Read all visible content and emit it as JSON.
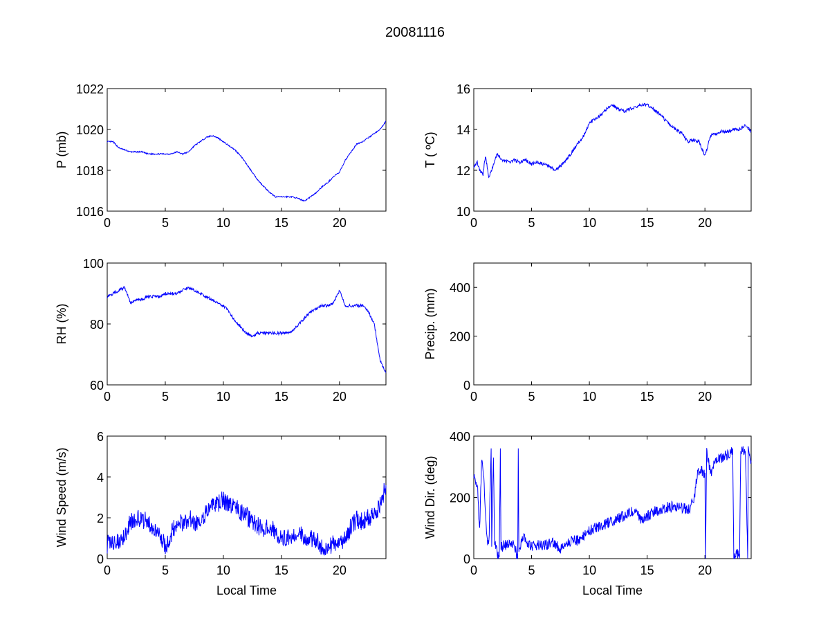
{
  "chart_data": {
    "title": "20081116",
    "line_color": "#0000ff",
    "panels": [
      {
        "type": "line",
        "ylabel": "P (mb)",
        "xlabel": "",
        "xlim": [
          0,
          24
        ],
        "ylim": [
          1016,
          1022
        ],
        "xticks": [
          0,
          5,
          10,
          15,
          20
        ],
        "yticks": [
          1016,
          1018,
          1020,
          1022
        ],
        "points": [
          [
            0,
            1019.4
          ],
          [
            0.5,
            1019.4
          ],
          [
            1,
            1019.1
          ],
          [
            1.5,
            1019.0
          ],
          [
            2,
            1018.9
          ],
          [
            2.5,
            1018.9
          ],
          [
            3,
            1018.9
          ],
          [
            3.5,
            1018.8
          ],
          [
            4,
            1018.8
          ],
          [
            4.5,
            1018.8
          ],
          [
            5,
            1018.8
          ],
          [
            5.5,
            1018.8
          ],
          [
            6,
            1018.9
          ],
          [
            6.5,
            1018.8
          ],
          [
            7,
            1018.9
          ],
          [
            7.5,
            1019.2
          ],
          [
            8,
            1019.4
          ],
          [
            8.5,
            1019.6
          ],
          [
            9,
            1019.7
          ],
          [
            9.5,
            1019.6
          ],
          [
            10,
            1019.4
          ],
          [
            10.5,
            1019.2
          ],
          [
            11,
            1019.0
          ],
          [
            11.5,
            1018.7
          ],
          [
            12,
            1018.3
          ],
          [
            12.5,
            1017.9
          ],
          [
            13,
            1017.5
          ],
          [
            13.5,
            1017.2
          ],
          [
            14,
            1016.9
          ],
          [
            14.5,
            1016.7
          ],
          [
            15,
            1016.7
          ],
          [
            15.5,
            1016.7
          ],
          [
            16,
            1016.7
          ],
          [
            16.5,
            1016.6
          ],
          [
            17,
            1016.5
          ],
          [
            17.5,
            1016.7
          ],
          [
            18,
            1016.9
          ],
          [
            18.5,
            1017.2
          ],
          [
            19,
            1017.4
          ],
          [
            19.5,
            1017.7
          ],
          [
            20,
            1017.9
          ],
          [
            20.5,
            1018.5
          ],
          [
            21,
            1018.9
          ],
          [
            21.5,
            1019.3
          ],
          [
            22,
            1019.4
          ],
          [
            22.5,
            1019.6
          ],
          [
            23,
            1019.8
          ],
          [
            23.5,
            1020.0
          ],
          [
            24,
            1020.4
          ]
        ]
      },
      {
        "type": "line",
        "ylabel": "T ( ºC)",
        "xlabel": "",
        "xlim": [
          0,
          24
        ],
        "ylim": [
          10,
          16
        ],
        "xticks": [
          0,
          5,
          10,
          15,
          20
        ],
        "yticks": [
          10,
          12,
          14,
          16
        ],
        "points": [
          [
            0,
            12.2
          ],
          [
            0.3,
            12.4
          ],
          [
            0.5,
            12.0
          ],
          [
            0.8,
            11.8
          ],
          [
            1,
            12.7
          ],
          [
            1.3,
            11.7
          ],
          [
            1.5,
            11.9
          ],
          [
            1.7,
            12.3
          ],
          [
            2,
            12.8
          ],
          [
            2.5,
            12.5
          ],
          [
            3,
            12.4
          ],
          [
            3.5,
            12.5
          ],
          [
            4,
            12.4
          ],
          [
            4.5,
            12.5
          ],
          [
            5,
            12.3
          ],
          [
            5.5,
            12.4
          ],
          [
            6,
            12.3
          ],
          [
            6.5,
            12.2
          ],
          [
            7,
            12.0
          ],
          [
            7.5,
            12.2
          ],
          [
            8,
            12.5
          ],
          [
            8.5,
            12.9
          ],
          [
            9,
            13.3
          ],
          [
            9.5,
            13.7
          ],
          [
            10,
            14.3
          ],
          [
            10.5,
            14.5
          ],
          [
            11,
            14.7
          ],
          [
            11.5,
            15.0
          ],
          [
            12,
            15.2
          ],
          [
            12.5,
            15.0
          ],
          [
            13,
            14.9
          ],
          [
            13.5,
            15.0
          ],
          [
            14,
            15.1
          ],
          [
            14.5,
            15.2
          ],
          [
            15,
            15.2
          ],
          [
            15.5,
            15.0
          ],
          [
            16,
            14.8
          ],
          [
            16.5,
            14.5
          ],
          [
            17,
            14.2
          ],
          [
            17.5,
            14.0
          ],
          [
            18,
            13.8
          ],
          [
            18.5,
            13.4
          ],
          [
            19,
            13.5
          ],
          [
            19.5,
            13.4
          ],
          [
            20,
            12.7
          ],
          [
            20.5,
            13.7
          ],
          [
            21,
            13.8
          ],
          [
            21.5,
            13.9
          ],
          [
            22,
            13.9
          ],
          [
            22.5,
            14.0
          ],
          [
            23,
            14.0
          ],
          [
            23.5,
            14.2
          ],
          [
            24,
            13.9
          ]
        ]
      },
      {
        "type": "line",
        "ylabel": "RH (%)",
        "xlabel": "",
        "xlim": [
          0,
          24
        ],
        "ylim": [
          60,
          100
        ],
        "xticks": [
          0,
          5,
          10,
          15,
          20
        ],
        "yticks": [
          60,
          80,
          100
        ],
        "points": [
          [
            0,
            89
          ],
          [
            0.5,
            90
          ],
          [
            1,
            91
          ],
          [
            1.5,
            92
          ],
          [
            2,
            87
          ],
          [
            2.5,
            88
          ],
          [
            3,
            88
          ],
          [
            3.5,
            89
          ],
          [
            4,
            89
          ],
          [
            4.5,
            89
          ],
          [
            5,
            90
          ],
          [
            5.5,
            90
          ],
          [
            6,
            90
          ],
          [
            6.5,
            91
          ],
          [
            7,
            92
          ],
          [
            7.5,
            91
          ],
          [
            8,
            90
          ],
          [
            8.5,
            89
          ],
          [
            9,
            88
          ],
          [
            9.5,
            87
          ],
          [
            10,
            86
          ],
          [
            10.5,
            84
          ],
          [
            11,
            81
          ],
          [
            11.5,
            79
          ],
          [
            12,
            77
          ],
          [
            12.5,
            76
          ],
          [
            13,
            77
          ],
          [
            13.5,
            77
          ],
          [
            14,
            77
          ],
          [
            14.5,
            77
          ],
          [
            15,
            77
          ],
          [
            15.5,
            77
          ],
          [
            16,
            78
          ],
          [
            16.5,
            80
          ],
          [
            17,
            82
          ],
          [
            17.5,
            84
          ],
          [
            18,
            85
          ],
          [
            18.5,
            86
          ],
          [
            19,
            86
          ],
          [
            19.5,
            87
          ],
          [
            20,
            91
          ],
          [
            20.5,
            86
          ],
          [
            21,
            86
          ],
          [
            21.5,
            86
          ],
          [
            22,
            86
          ],
          [
            22.5,
            84
          ],
          [
            23,
            80
          ],
          [
            23.5,
            68
          ],
          [
            24,
            64
          ]
        ]
      },
      {
        "type": "line",
        "ylabel": "Precip. (mm)",
        "xlabel": "",
        "xlim": [
          0,
          24
        ],
        "ylim": [
          0,
          500
        ],
        "xticks": [
          0,
          5,
          10,
          15,
          20
        ],
        "yticks": [
          0,
          200,
          400
        ],
        "points": []
      },
      {
        "type": "line",
        "ylabel": "Wind Speed (m/s)",
        "xlabel": "Local Time",
        "xlim": [
          0,
          24
        ],
        "ylim": [
          0,
          6
        ],
        "xticks": [
          0,
          5,
          10,
          15,
          20
        ],
        "yticks": [
          0,
          2,
          4,
          6
        ],
        "points": [
          [
            0,
            0.7
          ],
          [
            0.5,
            0.8
          ],
          [
            1,
            0.9
          ],
          [
            1.5,
            1.2
          ],
          [
            2,
            1.8
          ],
          [
            2.5,
            2.0
          ],
          [
            3,
            1.9
          ],
          [
            3.5,
            1.8
          ],
          [
            4,
            1.5
          ],
          [
            4.5,
            1.3
          ],
          [
            5,
            0.6
          ],
          [
            5.5,
            1.2
          ],
          [
            6,
            1.8
          ],
          [
            6.5,
            1.7
          ],
          [
            7,
            2.0
          ],
          [
            7.5,
            1.8
          ],
          [
            8,
            1.7
          ],
          [
            8.5,
            2.2
          ],
          [
            9,
            2.5
          ],
          [
            9.5,
            2.7
          ],
          [
            10,
            2.9
          ],
          [
            10.5,
            2.6
          ],
          [
            11,
            2.5
          ],
          [
            11.5,
            2.3
          ],
          [
            12,
            2.1
          ],
          [
            12.5,
            1.8
          ],
          [
            13,
            1.6
          ],
          [
            13.5,
            1.5
          ],
          [
            14,
            1.6
          ],
          [
            14.5,
            1.3
          ],
          [
            15,
            1.0
          ],
          [
            15.5,
            1.1
          ],
          [
            16,
            1.1
          ],
          [
            16.5,
            1.2
          ],
          [
            17,
            1.1
          ],
          [
            17.5,
            1.0
          ],
          [
            18,
            0.9
          ],
          [
            18.5,
            0.6
          ],
          [
            19,
            0.5
          ],
          [
            19.5,
            0.8
          ],
          [
            20,
            0.9
          ],
          [
            20.5,
            0.9
          ],
          [
            21,
            1.6
          ],
          [
            21.5,
            1.9
          ],
          [
            22,
            1.8
          ],
          [
            22.5,
            2.0
          ],
          [
            23,
            2.2
          ],
          [
            23.5,
            2.6
          ],
          [
            24,
            3.6
          ]
        ]
      },
      {
        "type": "line",
        "ylabel": "Wind Dir. (deg)",
        "xlabel": "Local Time",
        "xlim": [
          0,
          24
        ],
        "ylim": [
          0,
          400
        ],
        "xticks": [
          0,
          5,
          10,
          15,
          20
        ],
        "yticks": [
          0,
          200,
          400
        ],
        "points": [
          [
            0,
            280
          ],
          [
            0.3,
            240
          ],
          [
            0.5,
            90
          ],
          [
            0.7,
            340
          ],
          [
            0.9,
            240
          ],
          [
            1.1,
            80
          ],
          [
            1.3,
            40
          ],
          [
            1.5,
            360
          ],
          [
            1.55,
            50
          ],
          [
            1.7,
            330
          ],
          [
            1.8,
            50
          ],
          [
            2.0,
            20
          ],
          [
            2.2,
            5
          ],
          [
            2.3,
            360
          ],
          [
            2.35,
            40
          ],
          [
            3,
            45
          ],
          [
            3.5,
            50
          ],
          [
            3.8,
            0
          ],
          [
            3.85,
            360
          ],
          [
            3.9,
            20
          ],
          [
            4.2,
            70
          ],
          [
            5,
            40
          ],
          [
            6,
            45
          ],
          [
            7,
            50
          ],
          [
            7.5,
            30
          ],
          [
            8,
            50
          ],
          [
            9,
            60
          ],
          [
            10,
            90
          ],
          [
            11,
            110
          ],
          [
            12,
            120
          ],
          [
            13,
            140
          ],
          [
            14,
            160
          ],
          [
            14.5,
            120
          ],
          [
            15,
            140
          ],
          [
            16,
            160
          ],
          [
            17,
            170
          ],
          [
            18,
            165
          ],
          [
            18.7,
            160
          ],
          [
            18.9,
            190
          ],
          [
            19,
            180
          ],
          [
            19.4,
            290
          ],
          [
            20,
            280
          ],
          [
            20.05,
            0
          ],
          [
            20.15,
            350
          ],
          [
            20.5,
            280
          ],
          [
            21,
            320
          ],
          [
            22,
            340
          ],
          [
            22.4,
            360
          ],
          [
            22.5,
            0
          ],
          [
            22.7,
            20
          ],
          [
            23,
            10
          ],
          [
            23.1,
            360
          ],
          [
            23.5,
            350
          ],
          [
            23.7,
            0
          ],
          [
            23.75,
            350
          ],
          [
            24,
            320
          ]
        ]
      }
    ]
  }
}
